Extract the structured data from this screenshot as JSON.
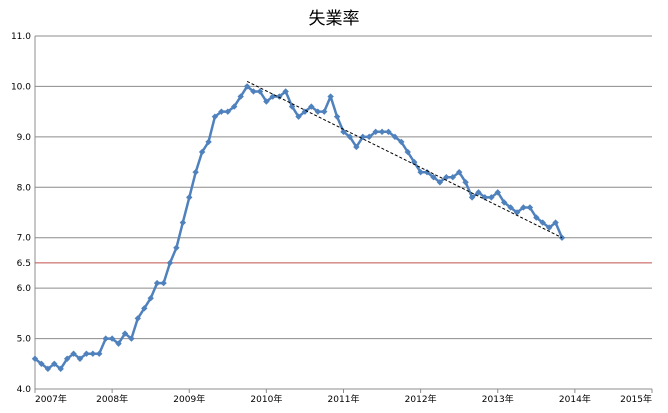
{
  "chart_data": {
    "type": "line",
    "title": "失業率",
    "xlabel": "",
    "ylabel": "",
    "xlim": [
      2007,
      2015
    ],
    "ylim": [
      4.0,
      11.0
    ],
    "y_ticks": [
      "4.0",
      "5.0",
      "6.0",
      "6.5",
      "7.0",
      "8.0",
      "9.0",
      "10.0",
      "11.0"
    ],
    "x_ticks": [
      "2007年",
      "2008年",
      "2009年",
      "2010年",
      "2011年",
      "2012年",
      "2013年",
      "2014年",
      "2015年"
    ],
    "grid": true,
    "legend": "none",
    "series": [
      {
        "type": "line-markers",
        "color": "#4f81bd",
        "x": [
          2007.0,
          2007.083,
          2007.167,
          2007.25,
          2007.333,
          2007.417,
          2007.5,
          2007.583,
          2007.667,
          2007.75,
          2007.833,
          2007.917,
          2008.0,
          2008.083,
          2008.167,
          2008.25,
          2008.333,
          2008.417,
          2008.5,
          2008.583,
          2008.667,
          2008.75,
          2008.833,
          2008.917,
          2009.0,
          2009.083,
          2009.167,
          2009.25,
          2009.333,
          2009.417,
          2009.5,
          2009.583,
          2009.667,
          2009.75,
          2009.833,
          2009.917,
          2010.0,
          2010.083,
          2010.167,
          2010.25,
          2010.333,
          2010.417,
          2010.5,
          2010.583,
          2010.667,
          2010.75,
          2010.833,
          2010.917,
          2011.0,
          2011.083,
          2011.167,
          2011.25,
          2011.333,
          2011.417,
          2011.5,
          2011.583,
          2011.667,
          2011.75,
          2011.833,
          2011.917,
          2012.0,
          2012.083,
          2012.167,
          2012.25,
          2012.333,
          2012.417,
          2012.5,
          2012.583,
          2012.667,
          2012.75,
          2012.833,
          2012.917,
          2013.0,
          2013.083,
          2013.167,
          2013.25,
          2013.333,
          2013.417,
          2013.5,
          2013.583,
          2013.667,
          2013.75,
          2013.833
        ],
        "y": [
          4.6,
          4.5,
          4.4,
          4.5,
          4.4,
          4.6,
          4.7,
          4.6,
          4.7,
          4.7,
          4.7,
          5.0,
          5.0,
          4.9,
          5.1,
          5.0,
          5.4,
          5.6,
          5.8,
          6.1,
          6.1,
          6.5,
          6.8,
          7.3,
          7.8,
          8.3,
          8.7,
          8.9,
          9.4,
          9.5,
          9.5,
          9.6,
          9.8,
          10.0,
          9.9,
          9.9,
          9.7,
          9.8,
          9.8,
          9.9,
          9.6,
          9.4,
          9.5,
          9.6,
          9.5,
          9.5,
          9.8,
          9.4,
          9.1,
          9.0,
          8.8,
          9.0,
          9.0,
          9.1,
          9.1,
          9.1,
          9.0,
          8.9,
          8.7,
          8.5,
          8.3,
          8.3,
          8.2,
          8.1,
          8.2,
          8.2,
          8.3,
          8.1,
          7.8,
          7.9,
          7.8,
          7.8,
          7.9,
          7.7,
          7.6,
          7.5,
          7.6,
          7.6,
          7.4,
          7.3,
          7.2,
          7.3,
          7.0
        ]
      },
      {
        "type": "trendline-dashed",
        "color": "#000000",
        "x": [
          2009.75,
          2013.833
        ],
        "y": [
          10.1,
          7.0
        ]
      }
    ],
    "reference_lines": [
      {
        "y": 6.5,
        "color": "#c0504d"
      }
    ]
  }
}
